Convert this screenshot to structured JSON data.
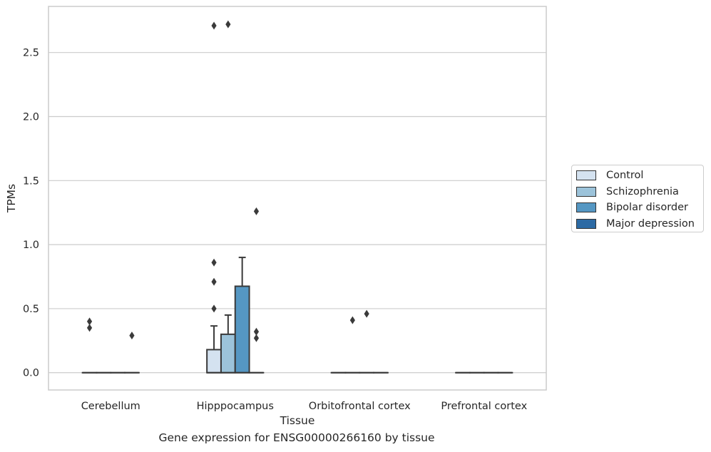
{
  "chart_data": {
    "type": "box",
    "title": "Gene expression for ENSG00000266160 by tissue",
    "xlabel": "Tissue",
    "ylabel": "TPMs",
    "categories": [
      "Cerebellum",
      "Hipppocampus",
      "Orbitofrontal cortex",
      "Prefrontal cortex"
    ],
    "ylim": [
      -0.135,
      2.86
    ],
    "yticks": [
      "0.0",
      "0.5",
      "1.0",
      "1.5",
      "2.0",
      "2.5"
    ],
    "ytick_values": [
      0.0,
      0.5,
      1.0,
      1.5,
      2.0,
      2.5
    ],
    "grid": "horizontal",
    "legend_placement": "right",
    "series": [
      {
        "name": "Control",
        "color": "#d4e2f0",
        "boxes": [
          {
            "q1": 0,
            "median": 0,
            "q3": 0,
            "whisker_low": 0,
            "whisker_high": 0,
            "outliers": [
              0.4,
              0.35
            ]
          },
          {
            "q1": 0,
            "median": 0,
            "q3": 0.18,
            "whisker_low": 0,
            "whisker_high": 0.365,
            "outliers": [
              0.5,
              0.71,
              0.86,
              2.71
            ]
          },
          {
            "q1": 0,
            "median": 0,
            "q3": 0,
            "whisker_low": 0,
            "whisker_high": 0,
            "outliers": []
          },
          {
            "q1": 0,
            "median": 0,
            "q3": 0,
            "whisker_low": 0,
            "whisker_high": 0,
            "outliers": []
          }
        ]
      },
      {
        "name": "Schizophrenia",
        "color": "#9cc3da",
        "boxes": [
          {
            "q1": 0,
            "median": 0,
            "q3": 0,
            "whisker_low": 0,
            "whisker_high": 0,
            "outliers": []
          },
          {
            "q1": 0,
            "median": 0,
            "q3": 0.3,
            "whisker_low": 0,
            "whisker_high": 0.45,
            "outliers": [
              2.72
            ]
          },
          {
            "q1": 0,
            "median": 0,
            "q3": 0,
            "whisker_low": 0,
            "whisker_high": 0,
            "outliers": [
              0.41
            ]
          },
          {
            "q1": 0,
            "median": 0,
            "q3": 0,
            "whisker_low": 0,
            "whisker_high": 0,
            "outliers": []
          }
        ]
      },
      {
        "name": "Bipolar disorder",
        "color": "#5597c3",
        "boxes": [
          {
            "q1": 0,
            "median": 0,
            "q3": 0,
            "whisker_low": 0,
            "whisker_high": 0,
            "outliers": []
          },
          {
            "q1": 0,
            "median": 0,
            "q3": 0.675,
            "whisker_low": 0,
            "whisker_high": 0.9,
            "outliers": []
          },
          {
            "q1": 0,
            "median": 0,
            "q3": 0,
            "whisker_low": 0,
            "whisker_high": 0,
            "outliers": [
              0.46
            ]
          },
          {
            "q1": 0,
            "median": 0,
            "q3": 0,
            "whisker_low": 0,
            "whisker_high": 0,
            "outliers": []
          }
        ]
      },
      {
        "name": "Major depression",
        "color": "#2c6aa4",
        "boxes": [
          {
            "q1": 0,
            "median": 0,
            "q3": 0,
            "whisker_low": 0,
            "whisker_high": 0,
            "outliers": [
              0.29
            ]
          },
          {
            "q1": 0,
            "median": 0,
            "q3": 0,
            "whisker_low": 0,
            "whisker_high": 0,
            "outliers": [
              1.26,
              0.32,
              0.27
            ]
          },
          {
            "q1": 0,
            "median": 0,
            "q3": 0,
            "whisker_low": 0,
            "whisker_high": 0,
            "outliers": []
          },
          {
            "q1": 0,
            "median": 0,
            "q3": 0,
            "whisker_low": 0,
            "whisker_high": 0,
            "outliers": []
          }
        ]
      }
    ]
  }
}
